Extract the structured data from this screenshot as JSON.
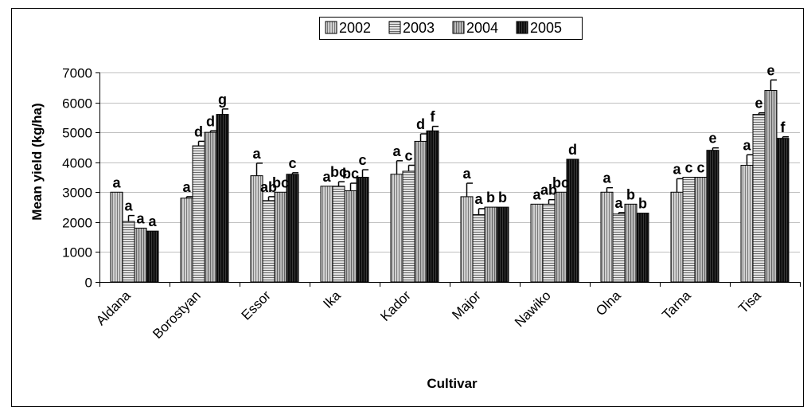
{
  "chart_data": {
    "type": "bar",
    "xlabel": "Cultivar",
    "ylabel": "Mean yield (kg/ha)",
    "ylim": [
      0,
      7000
    ],
    "yticks": [
      0,
      1000,
      2000,
      3000,
      4000,
      5000,
      6000,
      7000
    ],
    "yticks_text": [
      "0",
      "1000",
      "2000",
      "3000",
      "4000",
      "5000",
      "6000",
      "7000"
    ],
    "grid": "horizontal",
    "legend_position": "top-center",
    "categories": [
      "Aldana",
      "Borostyan",
      "Essor",
      "Ika",
      "Kador",
      "Major",
      "Nawiko",
      "Olna",
      "Tarna",
      "Tisa"
    ],
    "series": [
      {
        "name": "2002",
        "pattern": "vertical-hatch-light",
        "color": "#c8c8c8",
        "values": [
          3000,
          2800,
          3550,
          3200,
          3600,
          2850,
          2600,
          3000,
          3000,
          3900
        ],
        "errors": [
          0,
          50,
          420,
          0,
          450,
          450,
          0,
          150,
          450,
          350
        ],
        "labels": [
          "a",
          "a",
          "a",
          "a",
          "a",
          "a",
          "a",
          "a",
          "a",
          "a"
        ]
      },
      {
        "name": "2003",
        "pattern": "horizontal-hatch",
        "color": "#dcdcdc",
        "values": [
          2020,
          4550,
          2720,
          3200,
          3700,
          2250,
          2600,
          2270,
          3500,
          5600
        ],
        "errors": [
          200,
          150,
          130,
          150,
          200,
          200,
          150,
          50,
          0,
          50
        ],
        "labels": [
          "a",
          "d",
          "ab",
          "bc",
          "c",
          "a",
          "ab",
          "a",
          "c",
          "e"
        ]
      },
      {
        "name": "2004",
        "pattern": "vertical-hatch-medium",
        "color": "#b4b4b4",
        "values": [
          1800,
          5000,
          3000,
          3050,
          4700,
          2500,
          3000,
          2600,
          3500,
          6400
        ],
        "errors": [
          0,
          50,
          0,
          250,
          250,
          0,
          0,
          0,
          0,
          350
        ],
        "labels": [
          "a",
          "d",
          "bc",
          "bc",
          "d",
          "b",
          "bc",
          "b",
          "c",
          "e"
        ]
      },
      {
        "name": "2005",
        "pattern": "dark-hatch",
        "color": "#111111",
        "values": [
          1700,
          5600,
          3600,
          3500,
          5050,
          2500,
          4100,
          2300,
          4400,
          4800
        ],
        "errors": [
          0,
          180,
          50,
          250,
          150,
          0,
          0,
          0,
          80,
          50
        ],
        "labels": [
          "a",
          "g",
          "c",
          "c",
          "f",
          "b",
          "d",
          "b",
          "e",
          "f"
        ]
      }
    ]
  }
}
